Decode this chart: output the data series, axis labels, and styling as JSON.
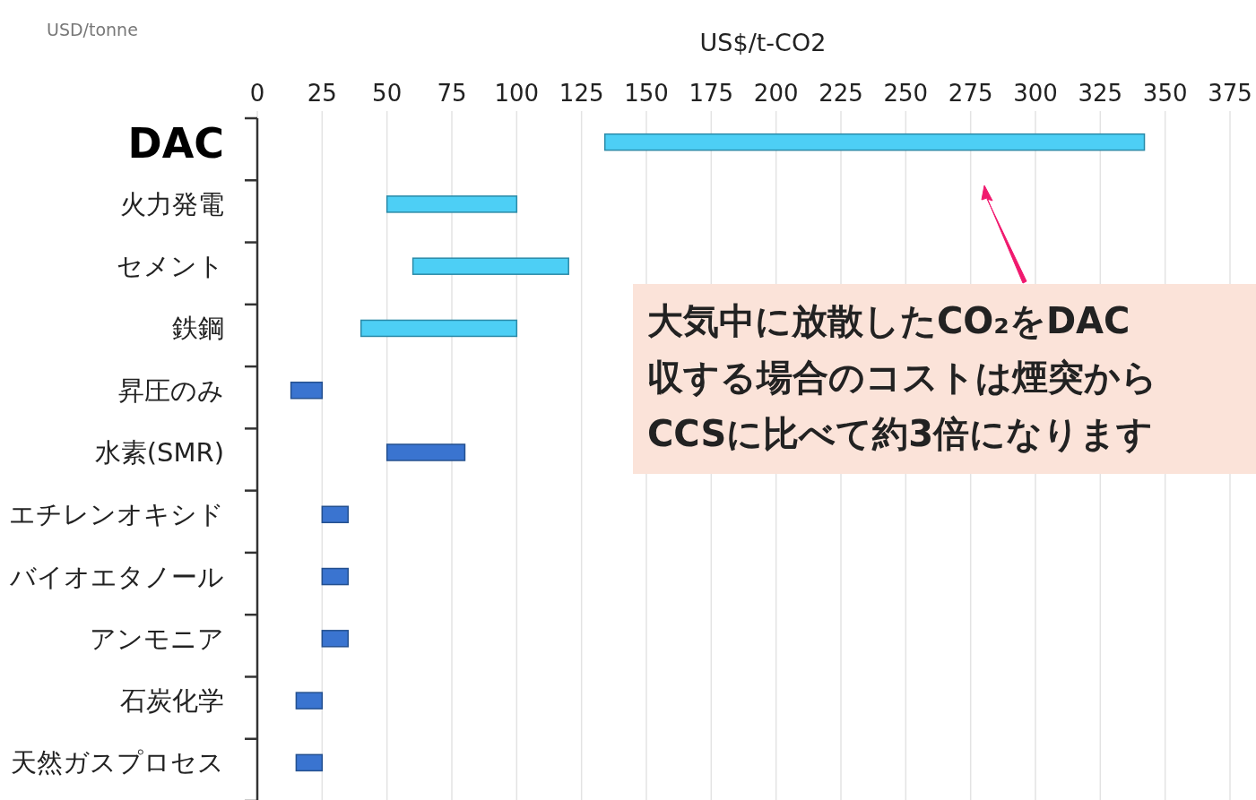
{
  "chart_data": {
    "type": "bar",
    "orientation": "horizontal",
    "xlabel": "US$/t-CO2",
    "categories": [
      "DAC",
      "火力発電",
      "セメント",
      "鉄鋼",
      "昇圧のみ",
      "水素(SMR)",
      "エチレンオキシド",
      "バイオエタノール",
      "アンモニア",
      "石炭化学",
      "天然ガスプロセス"
    ],
    "base": [
      134,
      50,
      60,
      40,
      13,
      50,
      25,
      25,
      25,
      15,
      15
    ],
    "values": [
      208,
      50,
      60,
      60,
      12,
      30,
      10,
      10,
      10,
      10,
      10
    ],
    "colors": [
      "#4dcff5",
      "#4dcff5",
      "#4dcff5",
      "#4dcff5",
      "#3a74d0",
      "#3a74d0",
      "#3a74d0",
      "#3a74d0",
      "#3a74d0",
      "#3a74d0",
      "#3a74d0"
    ],
    "xlim": [
      0,
      375
    ],
    "xticks": [
      0,
      25,
      50,
      75,
      100,
      125,
      150,
      175,
      200,
      225,
      250,
      275,
      300,
      325,
      350,
      375
    ],
    "grid": "x",
    "annotations": [
      "USD/tonne",
      "大気中に放散したCO₂をDAC\n収する場合のコストは煙突から\nCCSに比べて約3倍になります"
    ]
  }
}
